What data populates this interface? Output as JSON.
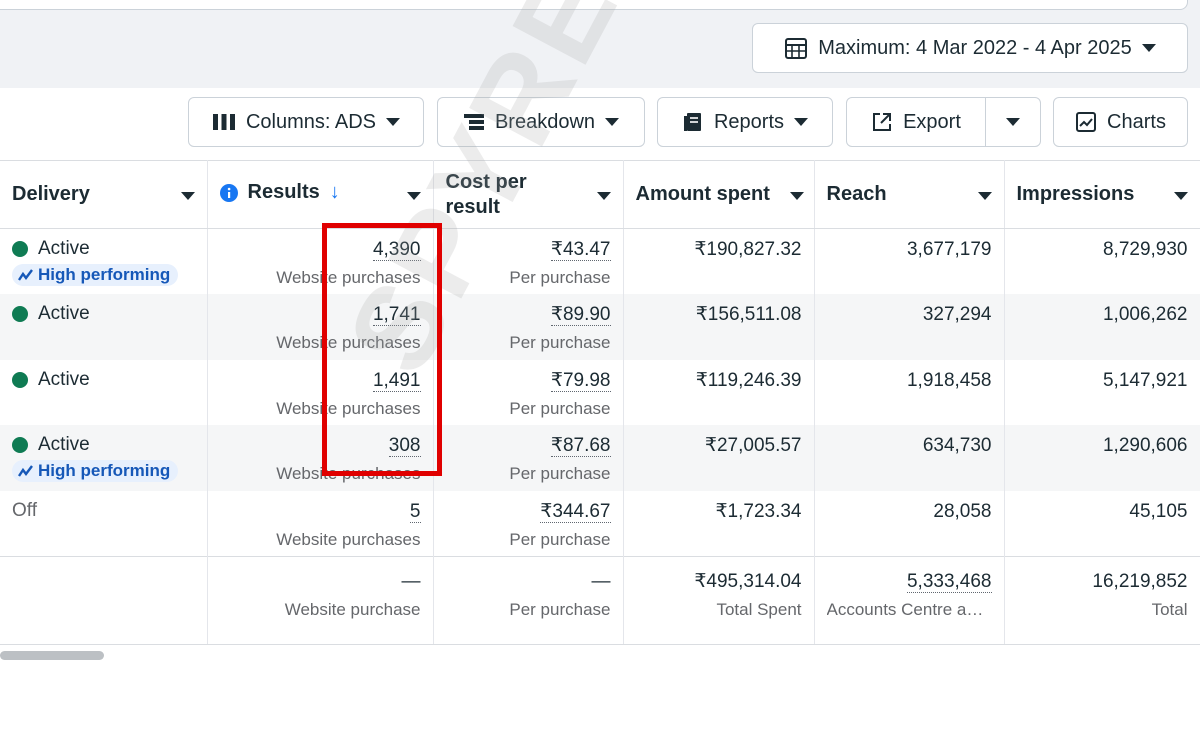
{
  "date_range": {
    "label": "Maximum: 4 Mar 2022 - 4 Apr 2025",
    "icon": "calendar-icon"
  },
  "toolbar": {
    "columns_label": "Columns: ADS",
    "breakdown_label": "Breakdown",
    "reports_label": "Reports",
    "export_label": "Export",
    "charts_label": "Charts"
  },
  "table": {
    "headers": {
      "delivery": "Delivery",
      "results": "Results",
      "results_sort": "↓",
      "cost_per_result": "Cost per result",
      "amount_spent": "Amount spent",
      "reach": "Reach",
      "impressions": "Impressions"
    },
    "rows": [
      {
        "status": "Active",
        "badge": "High performing",
        "results": "4,390",
        "results_sub": "Website purchases",
        "cost": "₹43.47",
        "cost_sub": "Per purchase",
        "amount": "₹190,827.32",
        "reach": "3,677,179",
        "impressions": "8,729,930"
      },
      {
        "status": "Active",
        "badge": "",
        "results": "1,741",
        "results_sub": "Website purchases",
        "cost": "₹89.90",
        "cost_sub": "Per purchase",
        "amount": "₹156,511.08",
        "reach": "327,294",
        "impressions": "1,006,262"
      },
      {
        "status": "Active",
        "badge": "",
        "results": "1,491",
        "results_sub": "Website purchases",
        "cost": "₹79.98",
        "cost_sub": "Per purchase",
        "amount": "₹119,246.39",
        "reach": "1,918,458",
        "impressions": "5,147,921"
      },
      {
        "status": "Active",
        "badge": "High performing",
        "results": "308",
        "results_sub": "Website purchases",
        "cost": "₹87.68",
        "cost_sub": "Per purchase",
        "amount": "₹27,005.57",
        "reach": "634,730",
        "impressions": "1,290,606"
      },
      {
        "status": "Off",
        "badge": "",
        "results": "5",
        "results_sub": "Website purchases",
        "cost": "₹344.67",
        "cost_sub": "Per purchase",
        "amount": "₹1,723.34",
        "reach": "28,058",
        "impressions": "45,105"
      }
    ],
    "totals": {
      "results": "—",
      "results_sub": "Website purchase",
      "cost": "—",
      "cost_sub": "Per purchase",
      "amount": "₹495,314.04",
      "amount_sub": "Total Spent",
      "reach": "5,333,468",
      "reach_sub": "Accounts Centre acc...",
      "impressions": "16,219,852",
      "impressions_sub": "Total"
    }
  },
  "watermark": "SPYREV",
  "colors": {
    "active": "#0f7b53",
    "badge_text": "#1658b8",
    "badge_bg": "#e7f0fd",
    "highlight": "#e00000",
    "info": "#1877f2"
  }
}
